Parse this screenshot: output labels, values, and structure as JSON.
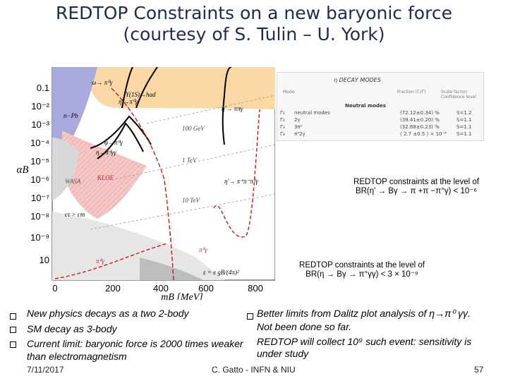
{
  "slide": {
    "title_line1": "REDTOP Constraints on a new baryonic force",
    "title_line2": "(courtesy of S. Tulin – U. York)"
  },
  "plot": {
    "ylabel": "αB",
    "xlabel": "mB [MeV]",
    "y_ticks": [
      "0.1",
      "10⁻²",
      "10⁻³",
      "10⁻⁴",
      "10⁻⁵",
      "10⁻⁶",
      "10⁻⁷",
      "10⁻⁸",
      "10⁻⁹",
      "10"
    ],
    "x_ticks": [
      "0",
      "200",
      "400",
      "600",
      "800"
    ],
    "labels": {
      "top_left_decay": "ω→\nπ⁰γ",
      "upsilon": "Υ(1S)→had",
      "n_pb": "n−Pb",
      "eta_prime_pi0_gamma": "η′→π⁰γ",
      "gev100": "100 GeV",
      "phi_pi0gamma": "φ→π⁰γ",
      "eta_pi0gamma_gamma": "η→π⁰γγ",
      "tev1": "1 TeV",
      "wasa": "WASA",
      "kloe": "KLOE",
      "eta_prime_pipi_pi0_gamma": "η′→\nπ⁺π⁻π⁰γ",
      "tev10": "10 TeV",
      "ct_cm": "cτ > cm",
      "pi0_gamma_a": "π⁰γ",
      "pi0_gamma_b": "π⁰γ",
      "epsilon_formula": "ε = e gB/(4π)²",
      "eta_prime_pi_pi_gamma": "η′→\nππγ"
    }
  },
  "decay_table": {
    "heading": "η DECAY MODES",
    "col_mode": "Mode",
    "col_fraction": "Fraction (Γᵢ/Γ)",
    "col_scale": "Scale factor/\nConfidence level",
    "section": "Neutral modes",
    "rows": [
      {
        "id": "Γ₁",
        "mode": "neutral modes",
        "fraction": "(72.12±0.34) %",
        "scale": "S=1.2"
      },
      {
        "id": "Γ₂",
        "mode": "2γ",
        "fraction": "(39.41±0.20) %",
        "scale": "S=1.1"
      },
      {
        "id": "Γ₃",
        "mode": "3π⁰",
        "fraction": "(32.68±0.23) %",
        "scale": "S=1.1"
      },
      {
        "id": "Γ₄",
        "mode": "π⁰2γ",
        "fraction": "( 2.7 ±0.5 ) × 10⁻⁴",
        "scale": "S=1.1"
      }
    ]
  },
  "callouts": {
    "upper": "REDTOP constraints at the level of BR(η' → Bγ → π +π −π°γ) < 10⁻⁶",
    "lower": "REDTOP constraints at the level of BR(η → Bγ → π°γγ) < 3 × 10⁻⁹"
  },
  "bullets_left": [
    "New physics decays as a two 2-body",
    "SM decay as 3-body",
    "Current limit: baryonic force is 2000 times weaker",
    "than electromagnetism"
  ],
  "bullets_right": [
    "Better limits from Dalitz plot analysis of η→π⁰ γγ.",
    "Not been done so far.",
    "REDTOP  will collect 10⁹ such event: sensitivity is",
    "under study"
  ],
  "footer": {
    "date": "7/11/2017",
    "author": "C. Gatto - INFN & NIU",
    "page": "57"
  },
  "colors": {
    "title": "#1f2a52",
    "excluded_blue": "#a9a9e0",
    "excluded_orange": "#fbd7a3",
    "excluded_red": "#f1b8b8",
    "excluded_gray": "#d0d0d0"
  }
}
